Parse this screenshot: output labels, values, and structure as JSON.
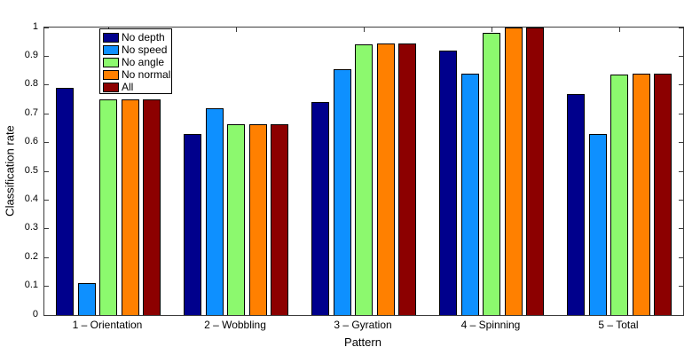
{
  "chart_data": {
    "type": "bar",
    "title": "",
    "xlabel": "Pattern",
    "ylabel": "Classification rate",
    "ylim": [
      0,
      1
    ],
    "yticks": [
      0,
      0.1,
      0.2,
      0.3,
      0.4,
      0.5,
      0.6,
      0.7,
      0.8,
      0.9,
      1
    ],
    "ytick_labels": [
      "0",
      "0.1",
      "0.2",
      "0.3",
      "0.4",
      "0.5",
      "0.6",
      "0.7",
      "0.8",
      "0.9",
      "1"
    ],
    "categories": [
      "1 – Orientation",
      "2 – Wobbling",
      "3 – Gyration",
      "4 – Spinning",
      "5 – Total"
    ],
    "grid": false,
    "legend_position": "top-left-inside",
    "axis_color": "#3c3c3c",
    "series": [
      {
        "name": "No depth",
        "color": "#00008C",
        "values": [
          0.79,
          0.63,
          0.74,
          0.92,
          0.77
        ]
      },
      {
        "name": "No speed",
        "color": "#0E90FF",
        "values": [
          0.11,
          0.72,
          0.855,
          0.84,
          0.63
        ]
      },
      {
        "name": "No angle",
        "color": "#8CF96E",
        "values": [
          0.75,
          0.665,
          0.94,
          0.98,
          0.835
        ]
      },
      {
        "name": "No normal",
        "color": "#FF8000",
        "values": [
          0.75,
          0.665,
          0.945,
          1.0,
          0.84
        ]
      },
      {
        "name": "All",
        "color": "#8C0000",
        "values": [
          0.75,
          0.665,
          0.945,
          1.0,
          0.84
        ]
      }
    ]
  }
}
